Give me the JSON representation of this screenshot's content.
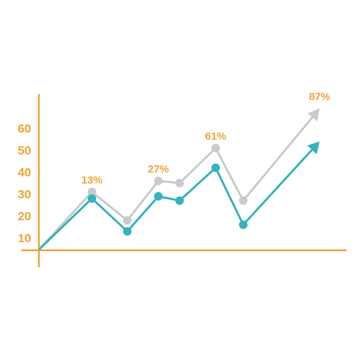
{
  "colors": {
    "axis": "#f0a436",
    "label": "#f0a436",
    "series_gray": "#c8cbcc",
    "series_teal": "#35b3bc",
    "background": "#ffffff"
  },
  "chart_data": {
    "type": "line",
    "title": "",
    "xlabel": "",
    "ylabel": "",
    "ylim": [
      5,
      75
    ],
    "yticks": [
      10,
      20,
      30,
      40,
      50,
      60
    ],
    "ytick_labels": [
      "10",
      "20",
      "30",
      "40",
      "50",
      "60"
    ],
    "x": [
      0,
      1,
      2,
      3,
      4,
      5,
      6,
      7,
      8
    ],
    "grid": false,
    "legend": "none",
    "series": [
      {
        "key": "gray",
        "values": [
          5,
          31,
          18,
          36,
          35,
          51,
          27,
          null,
          69
        ],
        "markers": [
          false,
          true,
          true,
          true,
          true,
          true,
          true,
          false,
          false
        ],
        "end_arrow": true
      },
      {
        "key": "teal",
        "values": [
          5,
          28,
          13,
          29,
          27,
          42,
          16,
          null,
          54
        ],
        "markers": [
          false,
          true,
          true,
          true,
          true,
          true,
          true,
          false,
          false
        ],
        "end_arrow": true
      }
    ],
    "annotations": [
      {
        "text": "13%",
        "x": 1,
        "y": 31
      },
      {
        "text": "27%",
        "x": 3,
        "y": 36
      },
      {
        "text": "61%",
        "x": 5,
        "y": 51
      },
      {
        "text": "87%",
        "x": 8,
        "y": 69
      }
    ]
  }
}
